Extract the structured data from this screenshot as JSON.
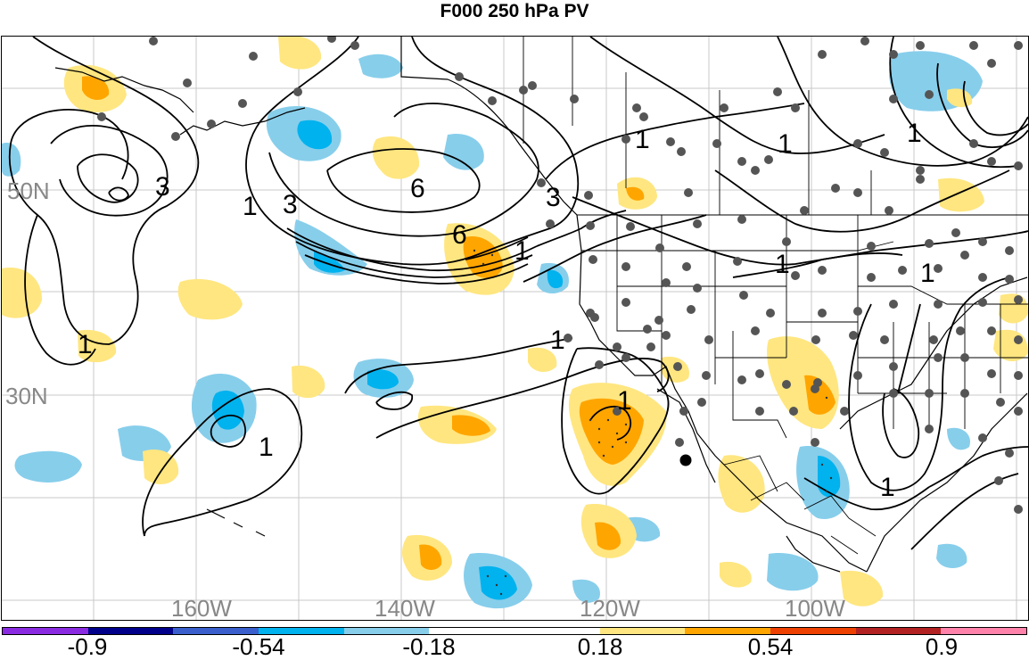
{
  "title": "F000 250 hPa PV",
  "lat_labels": [
    "50N",
    "30N"
  ],
  "lon_labels": [
    "160W",
    "140W",
    "120W",
    "100W"
  ],
  "contour_labels": [
    "1",
    "3",
    "6",
    "6",
    "3",
    "1",
    "1",
    "1",
    "1",
    "1",
    "3",
    "1",
    "1",
    "1",
    "1",
    "1",
    "1"
  ],
  "colorbar": {
    "colors": [
      "#8a2be2",
      "#00008b",
      "#3a5fcd",
      "#00b2ee",
      "#87ceeb",
      "#ffffff",
      "#ffffff",
      "#ffe680",
      "#ffa500",
      "#ee4000",
      "#b22222",
      "#ff82ab"
    ],
    "tick_labels": [
      "-0.9",
      "-0.54",
      "-0.18",
      "0.18",
      "0.54",
      "0.9"
    ]
  }
}
